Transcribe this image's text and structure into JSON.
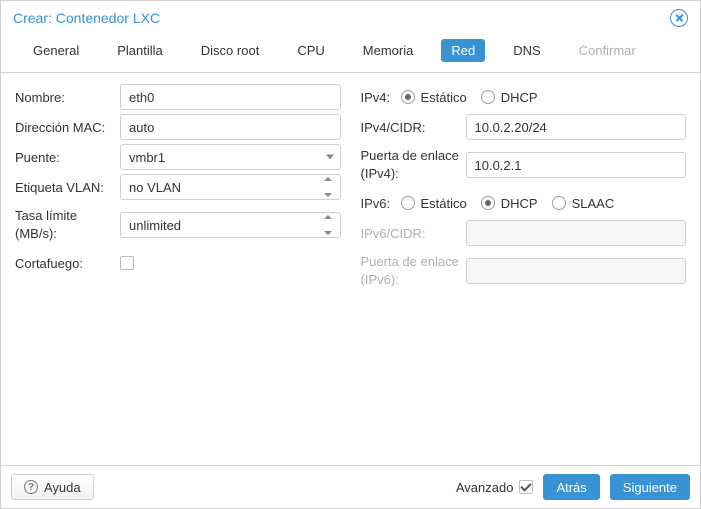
{
  "window": {
    "title": "Crear: Contenedor LXC"
  },
  "tabs": [
    {
      "id": "general",
      "label": "General"
    },
    {
      "id": "plantilla",
      "label": "Plantilla"
    },
    {
      "id": "discoroot",
      "label": "Disco root"
    },
    {
      "id": "cpu",
      "label": "CPU"
    },
    {
      "id": "memoria",
      "label": "Memoria"
    },
    {
      "id": "red",
      "label": "Red"
    },
    {
      "id": "dns",
      "label": "DNS"
    },
    {
      "id": "confirmar",
      "label": "Confirmar"
    }
  ],
  "activeTab": "red",
  "disabledTabs": [
    "confirmar"
  ],
  "left": {
    "nombre": {
      "label": "Nombre:",
      "value": "eth0"
    },
    "mac": {
      "label": "Dirección MAC:",
      "value": "auto"
    },
    "puente": {
      "label": "Puente:",
      "value": "vmbr1"
    },
    "vlan": {
      "label": "Etiqueta VLAN:",
      "value": "no VLAN"
    },
    "rate": {
      "label": "Tasa límite (MB/s):",
      "value": "unlimited"
    },
    "cortafuego": {
      "label": "Cortafuego:",
      "checked": false
    }
  },
  "right": {
    "ipv4": {
      "label": "IPv4:",
      "options": {
        "static": "Estático",
        "dhcp": "DHCP"
      },
      "selected": "static"
    },
    "ipv4cidr": {
      "label": "IPv4/CIDR:",
      "value": "10.0.2.20/24"
    },
    "gw4": {
      "label": "Puerta de enlace (IPv4):",
      "value": "10.0.2.1"
    },
    "ipv6": {
      "label": "IPv6:",
      "options": {
        "static": "Estático",
        "dhcp": "DHCP",
        "slaac": "SLAAC"
      },
      "selected": "dhcp"
    },
    "ipv6cidr": {
      "label": "IPv6/CIDR:",
      "value": "",
      "disabled": true
    },
    "gw6": {
      "label": "Puerta de enlace (IPv6):",
      "value": "",
      "disabled": true
    }
  },
  "footer": {
    "help": "Ayuda",
    "advanced": {
      "label": "Avanzado",
      "checked": true
    },
    "back": "Atrás",
    "next": "Siguiente"
  },
  "colors": {
    "accent": "#3892d4",
    "border": "#d0d0d0",
    "disabledText": "#b0b0b0"
  }
}
